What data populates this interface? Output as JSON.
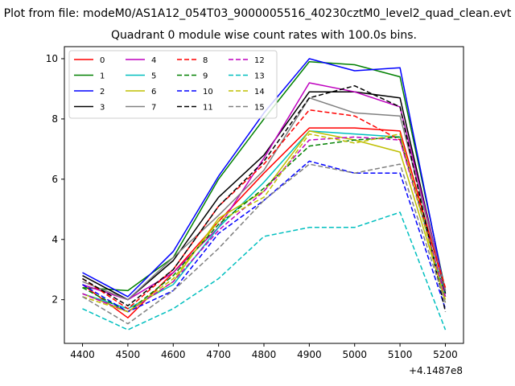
{
  "chart_data": {
    "type": "line",
    "suptitle": "Plot from file: modeM0/AS1A12_054T03_9000005516_40230cztM0_level2_quad_clean.evt",
    "title": "Quadrant 0 module wise count rates with 100.0s bins.",
    "xlabel": "",
    "ylabel": "",
    "x_offset_label": "+4.1487e8",
    "x": [
      4400,
      4500,
      4600,
      4700,
      4800,
      4900,
      5000,
      5100,
      5200
    ],
    "xticks": [
      "4400",
      "4500",
      "4600",
      "4700",
      "4800",
      "4900",
      "5000",
      "5100",
      "5200"
    ],
    "yticks": [
      "2",
      "4",
      "6",
      "8",
      "10"
    ],
    "xlim": [
      4360,
      5240
    ],
    "ylim": [
      0.55,
      10.4
    ],
    "grid": false,
    "legend_position": "top-left",
    "legend_columns": 4,
    "series": [
      {
        "name": "0",
        "color": "#ff0000",
        "dash": "solid",
        "values": [
          2.5,
          1.4,
          2.9,
          4.6,
          6.2,
          7.7,
          7.7,
          7.6,
          2.3
        ]
      },
      {
        "name": "1",
        "color": "#008000",
        "dash": "solid",
        "values": [
          2.4,
          2.3,
          3.4,
          6.0,
          8.0,
          9.9,
          9.8,
          9.4,
          2.3
        ]
      },
      {
        "name": "2",
        "color": "#0000ff",
        "dash": "solid",
        "values": [
          2.9,
          2.1,
          3.6,
          6.1,
          8.2,
          10.0,
          9.6,
          9.7,
          2.2
        ]
      },
      {
        "name": "3",
        "color": "#000000",
        "dash": "solid",
        "values": [
          2.8,
          2.0,
          3.3,
          5.4,
          6.8,
          8.9,
          8.9,
          8.7,
          2.2
        ]
      },
      {
        "name": "4",
        "color": "#bf00bf",
        "dash": "solid",
        "values": [
          2.5,
          2.0,
          2.9,
          4.4,
          6.7,
          9.2,
          8.9,
          8.4,
          2.3
        ]
      },
      {
        "name": "5",
        "color": "#00bfbf",
        "dash": "solid",
        "values": [
          2.2,
          1.7,
          2.5,
          4.4,
          5.9,
          7.6,
          7.5,
          7.4,
          2.1
        ]
      },
      {
        "name": "6",
        "color": "#bfbf00",
        "dash": "solid",
        "values": [
          2.2,
          1.6,
          2.6,
          4.7,
          5.6,
          7.6,
          7.3,
          6.9,
          2.0
        ]
      },
      {
        "name": "7",
        "color": "#808080",
        "dash": "solid",
        "values": [
          2.6,
          2.0,
          3.4,
          4.8,
          6.3,
          8.7,
          8.2,
          8.1,
          2.3
        ]
      },
      {
        "name": "8",
        "color": "#ff0000",
        "dash": "dashed",
        "values": [
          2.7,
          1.7,
          3.0,
          5.1,
          6.5,
          8.3,
          8.1,
          7.3,
          2.4
        ]
      },
      {
        "name": "9",
        "color": "#008000",
        "dash": "dashed",
        "values": [
          2.4,
          1.6,
          2.8,
          4.5,
          5.7,
          7.1,
          7.3,
          7.4,
          2.1
        ]
      },
      {
        "name": "10",
        "color": "#0000ff",
        "dash": "dashed",
        "values": [
          2.5,
          1.6,
          2.3,
          4.2,
          5.3,
          6.6,
          6.2,
          6.2,
          1.7
        ]
      },
      {
        "name": "11",
        "color": "#000000",
        "dash": "dashed",
        "values": [
          2.7,
          1.8,
          3.0,
          5.1,
          6.6,
          8.7,
          9.1,
          8.4,
          1.6
        ]
      },
      {
        "name": "12",
        "color": "#bf00bf",
        "dash": "dashed",
        "values": [
          2.2,
          1.6,
          2.6,
          4.3,
          5.6,
          7.3,
          7.4,
          7.3,
          2.1
        ]
      },
      {
        "name": "13",
        "color": "#00bfbf",
        "dash": "dashed",
        "values": [
          1.7,
          1.0,
          1.7,
          2.7,
          4.1,
          4.4,
          4.4,
          4.9,
          1.0
        ]
      },
      {
        "name": "14",
        "color": "#bfbf00",
        "dash": "dashed",
        "values": [
          2.1,
          1.6,
          2.7,
          4.6,
          5.4,
          7.5,
          7.2,
          7.5,
          1.9
        ]
      },
      {
        "name": "15",
        "color": "#808080",
        "dash": "dashed",
        "values": [
          2.1,
          1.2,
          2.3,
          3.7,
          5.3,
          6.5,
          6.2,
          6.5,
          1.9
        ]
      }
    ]
  }
}
